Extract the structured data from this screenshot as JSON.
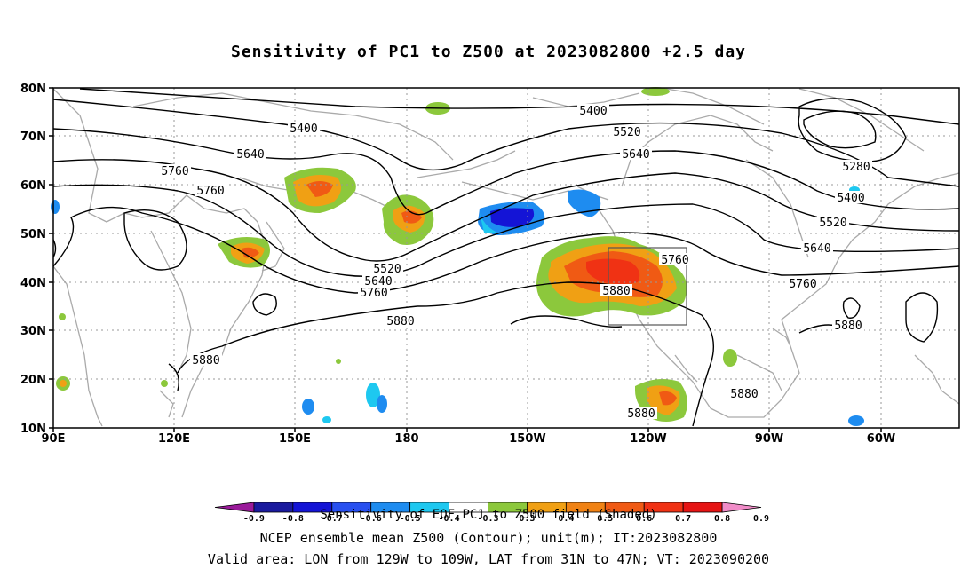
{
  "title": "Sensitivity of PC1 to Z500 at 2023082800 +2.5 day",
  "lat_labels": [
    "80N",
    "70N",
    "60N",
    "50N",
    "40N",
    "30N",
    "20N",
    "10N"
  ],
  "lon_labels": [
    "90E",
    "120E",
    "150E",
    "180",
    "150W",
    "120W",
    "90W",
    "60W"
  ],
  "contour_labels": [
    {
      "text": "5400",
      "pos": "top-center"
    },
    {
      "text": "5400",
      "pos": "upper-left"
    },
    {
      "text": "5520",
      "pos": "upper-center"
    },
    {
      "text": "5640",
      "pos": "upper-left"
    },
    {
      "text": "5640",
      "pos": "upper-center"
    },
    {
      "text": "5760",
      "pos": "left"
    },
    {
      "text": "5760",
      "pos": "left-lower"
    },
    {
      "text": "5280",
      "pos": "upper-right"
    },
    {
      "text": "5400",
      "pos": "right"
    },
    {
      "text": "5520",
      "pos": "right"
    },
    {
      "text": "5640",
      "pos": "right"
    },
    {
      "text": "5760",
      "pos": "right"
    },
    {
      "text": "5520",
      "pos": "center"
    },
    {
      "text": "5640",
      "pos": "center"
    },
    {
      "text": "5760",
      "pos": "center"
    },
    {
      "text": "5880",
      "pos": "center"
    },
    {
      "text": "5760",
      "pos": "box"
    },
    {
      "text": "5880",
      "pos": "box"
    },
    {
      "text": "5880",
      "pos": "left"
    },
    {
      "text": "5880",
      "pos": "lower-center"
    },
    {
      "text": "5880",
      "pos": "lower-right"
    },
    {
      "text": "5880",
      "pos": "right"
    }
  ],
  "colorbar": {
    "labels": [
      "-0.9",
      "-0.8",
      "-0.7",
      "-0.6",
      "-0.5",
      "-0.4",
      "-0.3",
      "0.3",
      "0.4",
      "0.5",
      "0.6",
      "0.7",
      "0.8",
      "0.9"
    ],
    "colors": [
      "#9a1a9a",
      "#1a1a9e",
      "#1414d6",
      "#2850f0",
      "#1e8cf0",
      "#1ec8f0",
      "#ffffff",
      "#8cc83c",
      "#f0a014",
      "#f08214",
      "#f05a14",
      "#f03214",
      "#e61414",
      "#f08cc8"
    ]
  },
  "captions": {
    "line1": "Sensitivity of EOF PC1 to Z500 field (Shaded)",
    "line2": "NCEP ensemble mean Z500 (Contour); unit(m); IT:2023082800",
    "line3": "Valid area: LON from 129W to 109W, LAT from 31N to 47N; VT: 2023090200"
  }
}
